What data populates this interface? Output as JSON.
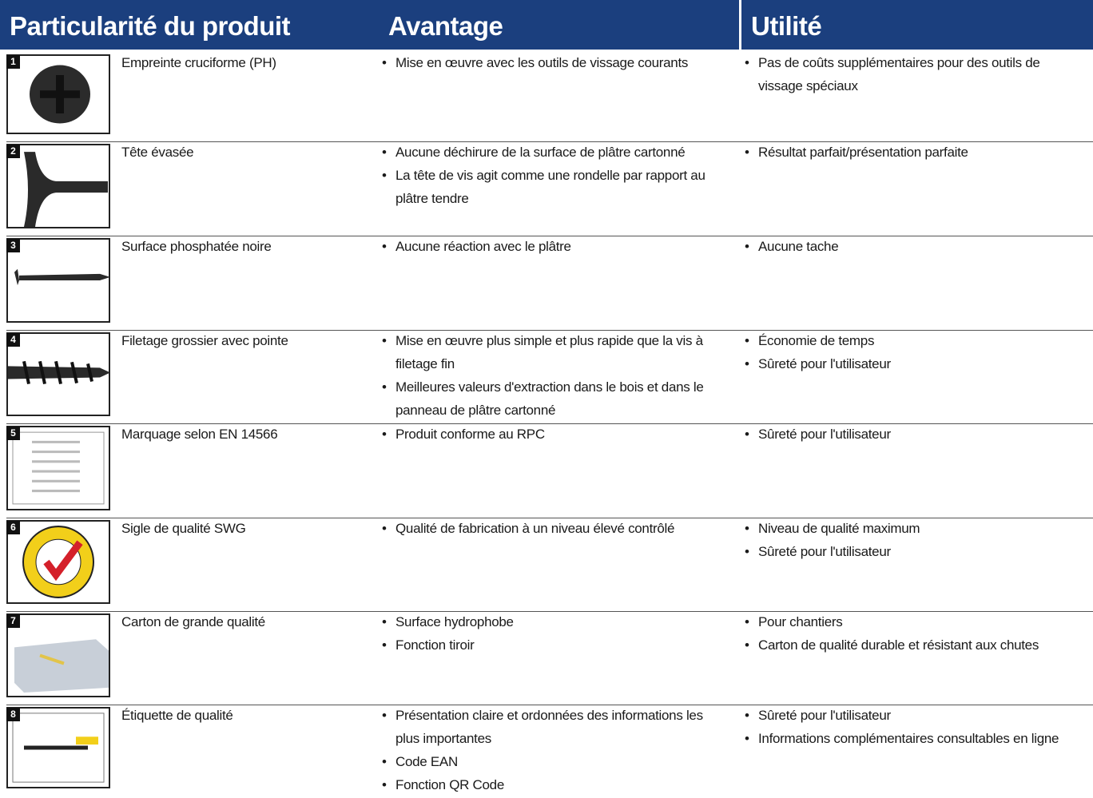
{
  "headers": [
    "Particularité du produit",
    "Avantage",
    "Utilité"
  ],
  "rows": [
    {
      "number": "1",
      "feature": "Empreinte cruciforme  (PH)",
      "advantages": [
        "Mise en œuvre avec les outils de vissage courants"
      ],
      "utilities": [
        "Pas de coûts supplémentaires pour des outils de vissage spéciaux"
      ]
    },
    {
      "number": "2",
      "feature": "Tête évasée",
      "advantages": [
        "Aucune déchirure de la surface de plâtre cartonné",
        "La tête de vis agit comme une rondelle par rapport au plâtre tendre"
      ],
      "utilities": [
        "Résultat parfait/présentation parfaite"
      ]
    },
    {
      "number": "3",
      "feature": "Surface phosphatée noire",
      "advantages": [
        "Aucune réaction avec le plâtre"
      ],
      "utilities": [
        "Aucune tache"
      ]
    },
    {
      "number": "4",
      "feature": "Filetage grossier avec pointe",
      "advantages": [
        "Mise en œuvre plus simple et plus rapide que la vis à filetage fin",
        "Meilleures valeurs d'extraction dans le bois et dans le panneau de plâtre cartonné"
      ],
      "utilities": [
        "Économie de temps",
        "Sûreté pour l'utilisateur"
      ]
    },
    {
      "number": "5",
      "feature": "Marquage selon EN 14566",
      "advantages": [
        "Produit conforme au RPC"
      ],
      "utilities": [
        "Sûreté pour l'utilisateur"
      ]
    },
    {
      "number": "6",
      "feature": "Sigle de qualité SWG",
      "advantages": [
        "Qualité de fabrication à un niveau élevé contrôlé"
      ],
      "utilities": [
        "Niveau de qualité maximum",
        "Sûreté pour l'utilisateur"
      ]
    },
    {
      "number": "7",
      "feature": "Carton de grande qualité",
      "advantages": [
        "Surface hydrophobe",
        "Fonction tiroir"
      ],
      "utilities": [
        "Pour chantiers",
        "Carton de qualité durable et résistant aux chutes"
      ]
    },
    {
      "number": "8",
      "feature": "Étiquette de qualité",
      "advantages": [
        "Présentation claire et ordonnées des informations les plus importantes",
        "Code EAN",
        "Fonction QR Code"
      ],
      "utilities": [
        "Sûreté pour l'utilisateur",
        "Informations complémentaires consultables en ligne"
      ]
    }
  ]
}
